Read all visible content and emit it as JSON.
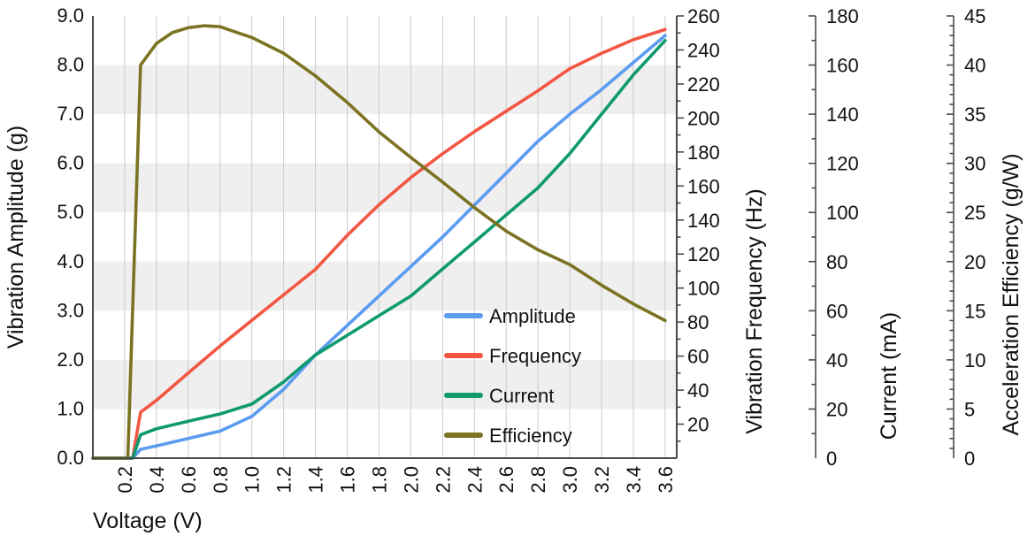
{
  "chart": {
    "x_axis": {
      "title": "Voltage (V)",
      "tick_start": 0.2,
      "tick_step": 0.2,
      "tick_count": 18,
      "decimals": 1,
      "range": [
        0,
        3.673
      ]
    },
    "left_axis": {
      "title": "Vibration Amplitude (g)",
      "label_start": 0,
      "label_step": 1,
      "label_count": 10,
      "decimals": 1,
      "range": [
        0,
        9
      ]
    },
    "right_axes": [
      {
        "id": "frequency",
        "title": "Vibration Frequency (Hz)",
        "range": [
          0,
          260
        ],
        "label_start": 20,
        "major_step": 20,
        "minor_step": 10,
        "decimals": 0
      },
      {
        "id": "current",
        "title": "Current (mA)",
        "range": [
          0,
          180
        ],
        "label_start": 0,
        "major_step": 20,
        "minor_step": 10,
        "decimals": 0
      },
      {
        "id": "efficiency",
        "title": "Acceleration Efficiency (g/W)",
        "range": [
          0,
          45
        ],
        "label_start": 0,
        "major_step": 5,
        "minor_step": 1,
        "decimals": 0
      }
    ],
    "bands": {
      "pairs": [
        [
          1,
          2
        ],
        [
          3,
          4
        ],
        [
          5,
          6
        ],
        [
          7,
          8
        ]
      ],
      "color": "#efefef"
    },
    "gridline_color": "#cbcbcb",
    "axis_line_color": "#4a4a4a",
    "text_color": "#111111"
  },
  "chart_data": {
    "type": "line",
    "title": "",
    "xlabel": "Voltage (V)",
    "x_range_V": [
      0,
      3.6
    ],
    "legend_position": "inside lower-right of plot",
    "grid": "vertical gridlines + horizontal shaded bands",
    "series": [
      {
        "name": "Amplitude",
        "axis": "Vibration Amplitude (g)",
        "axis_max": 9,
        "color": "#5b9bf0",
        "x": [
          0,
          0.25,
          0.3,
          0.4,
          0.6,
          0.8,
          1.0,
          1.2,
          1.4,
          1.6,
          1.8,
          2.0,
          2.2,
          2.4,
          2.6,
          2.8,
          3.0,
          3.2,
          3.4,
          3.6
        ],
        "y": [
          0,
          0,
          0.18,
          0.25,
          0.4,
          0.55,
          0.85,
          1.4,
          2.1,
          2.7,
          3.3,
          3.9,
          4.5,
          5.15,
          5.8,
          6.45,
          7.0,
          7.5,
          8.05,
          8.6
        ]
      },
      {
        "name": "Frequency",
        "axis": "Vibration Frequency (Hz)",
        "axis_max": 260,
        "color": "#f25743",
        "x": [
          0,
          0.25,
          0.3,
          0.4,
          0.6,
          0.8,
          1.0,
          1.2,
          1.4,
          1.6,
          1.8,
          2.0,
          2.2,
          2.4,
          2.6,
          2.8,
          3.0,
          3.2,
          3.4,
          3.6
        ],
        "y": [
          0,
          0,
          27,
          34,
          50,
          66,
          81,
          96,
          111,
          131,
          149,
          165,
          179,
          192,
          204,
          216,
          229,
          238,
          246,
          252
        ]
      },
      {
        "name": "Current",
        "axis": "Current (mA)",
        "axis_max": 180,
        "color": "#0f9a6e",
        "x": [
          0,
          0.25,
          0.3,
          0.4,
          0.6,
          0.8,
          1.0,
          1.2,
          1.4,
          1.6,
          1.8,
          2.0,
          2.2,
          2.4,
          2.6,
          2.8,
          3.0,
          3.2,
          3.4,
          3.6
        ],
        "y": [
          0,
          0,
          9.5,
          12,
          15,
          18,
          22,
          31,
          42,
          50,
          58,
          66,
          77,
          88,
          99,
          110,
          124,
          140,
          156,
          170
        ]
      },
      {
        "name": "Efficiency",
        "axis": "Acceleration Efficiency (g/W)",
        "axis_max": 45,
        "color": "#7b7322",
        "x": [
          0,
          0.22,
          0.3,
          0.4,
          0.5,
          0.6,
          0.7,
          0.8,
          1.0,
          1.2,
          1.4,
          1.6,
          1.8,
          2.0,
          2.2,
          2.4,
          2.6,
          2.8,
          3.0,
          3.2,
          3.4,
          3.6
        ],
        "y": [
          0,
          0,
          40,
          42.2,
          43.3,
          43.8,
          44.0,
          43.9,
          42.8,
          41.2,
          38.9,
          36.2,
          33.2,
          30.6,
          28.1,
          25.5,
          23.1,
          21.2,
          19.7,
          17.6,
          15.7,
          14.0
        ]
      }
    ]
  },
  "legend": {
    "items": [
      "Amplitude",
      "Frequency",
      "Current",
      "Efficiency"
    ]
  }
}
